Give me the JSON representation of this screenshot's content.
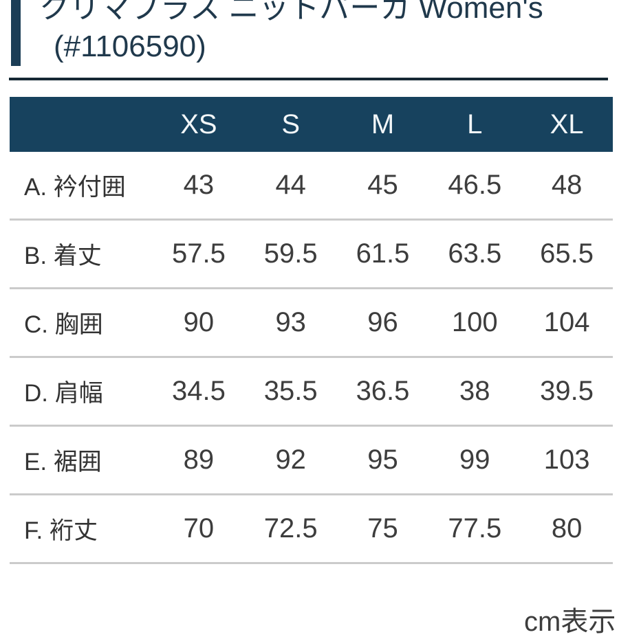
{
  "product": {
    "title_line1": "クリマプラス ニットパーカ Women's",
    "title_line2": "(#1106590)"
  },
  "size_chart": {
    "columns": [
      "XS",
      "S",
      "M",
      "L",
      "XL"
    ],
    "rows": [
      {
        "label": "A. 衿付囲",
        "values": [
          "43",
          "44",
          "45",
          "46.5",
          "48"
        ]
      },
      {
        "label": "B. 着丈",
        "values": [
          "57.5",
          "59.5",
          "61.5",
          "63.5",
          "65.5"
        ]
      },
      {
        "label": "C. 胸囲",
        "values": [
          "90",
          "93",
          "96",
          "100",
          "104"
        ]
      },
      {
        "label": "D. 肩幅",
        "values": [
          "34.5",
          "35.5",
          "36.5",
          "38",
          "39.5"
        ]
      },
      {
        "label": "E. 裾囲",
        "values": [
          "89",
          "92",
          "95",
          "99",
          "103"
        ]
      },
      {
        "label": "F. 裄丈",
        "values": [
          "70",
          "72.5",
          "75",
          "77.5",
          "80"
        ]
      }
    ],
    "unit_note": "cm表示"
  },
  "colors": {
    "header_bg": "#17425e",
    "title_text": "#20394c",
    "title_divider": "#152834",
    "row_separator": "#cbcbcb",
    "value_text": "#3d3d3d"
  }
}
